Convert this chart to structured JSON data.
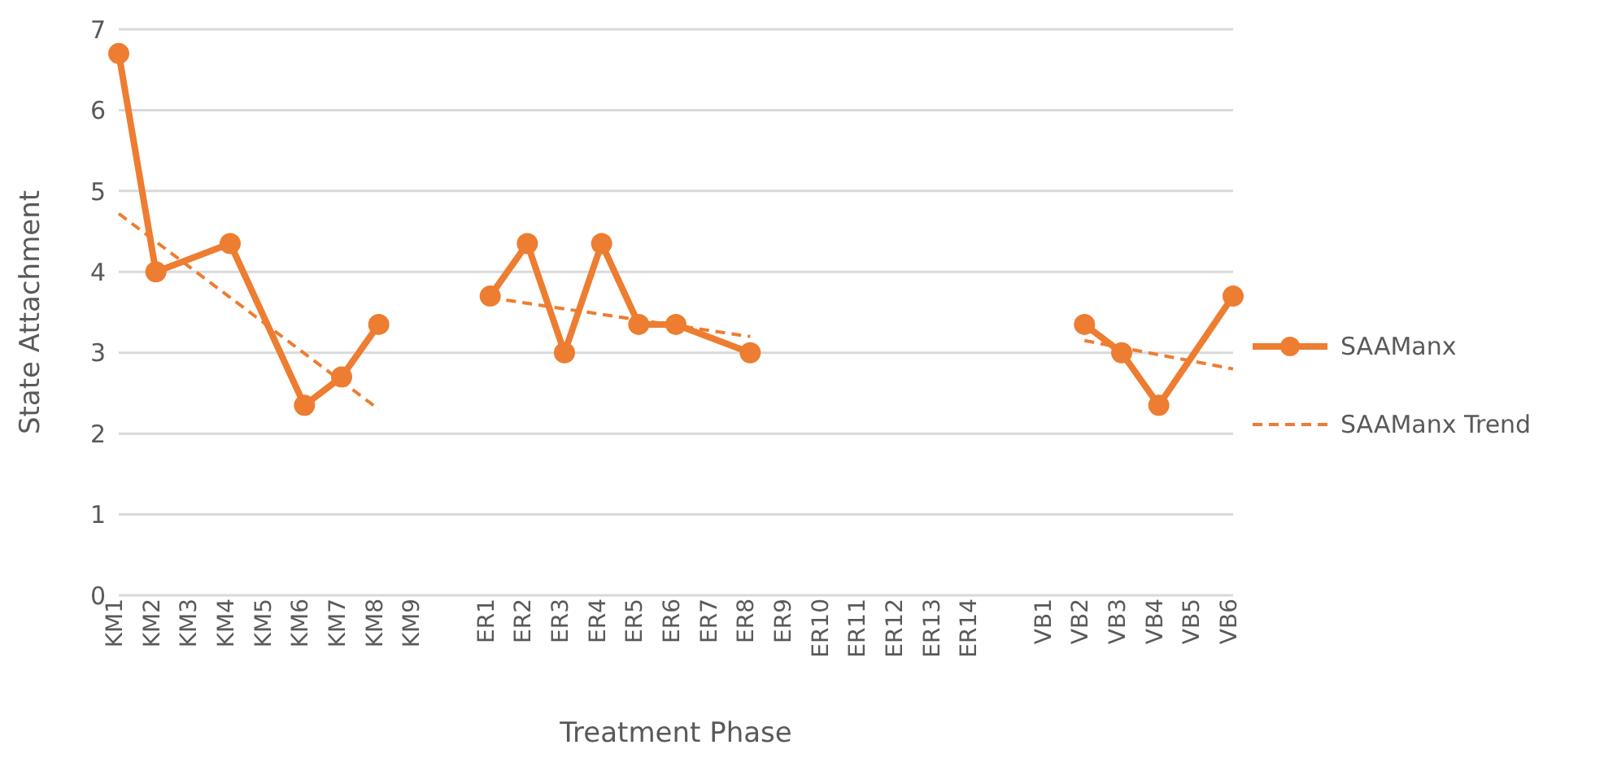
{
  "chart_data": {
    "type": "line",
    "xlabel": "Treatment Phase",
    "ylabel": "State Attachment",
    "categories": [
      "KM1",
      "KM2",
      "KM3",
      "KM4",
      "KM5",
      "KM6",
      "KM7",
      "KM8",
      "KM9",
      null,
      "ER1",
      "ER2",
      "ER3",
      "ER4",
      "ER5",
      "ER6",
      "ER7",
      "ER8",
      "ER9",
      "ER10",
      "ER11",
      "ER12",
      "ER13",
      "ER14",
      null,
      "VB1",
      "VB2",
      "VB3",
      "VB4",
      "VB5",
      "VB6"
    ],
    "series": [
      {
        "name": "SAAManx",
        "color": "#ed7d31",
        "marker": "circle",
        "line_style": "solid",
        "values": [
          6.7,
          4.0,
          null,
          4.35,
          null,
          2.35,
          2.7,
          3.35,
          null,
          null,
          3.7,
          4.35,
          3.0,
          4.35,
          3.35,
          3.35,
          null,
          3.0,
          null,
          null,
          null,
          null,
          null,
          null,
          null,
          null,
          3.35,
          3.0,
          2.35,
          null,
          3.7
        ]
      },
      {
        "name": "SAAManx Trend",
        "color": "#ed7d31",
        "marker": "none",
        "line_style": "dashed",
        "values": [
          4.72,
          null,
          null,
          null,
          null,
          null,
          null,
          2.3,
          null,
          null,
          3.68,
          null,
          null,
          null,
          null,
          null,
          null,
          3.2,
          null,
          null,
          null,
          null,
          null,
          null,
          null,
          null,
          3.15,
          null,
          null,
          null,
          2.8
        ]
      }
    ],
    "ylim": [
      0,
      7
    ],
    "yticks": [
      0,
      1,
      2,
      3,
      4,
      5,
      6,
      7
    ],
    "grid": "y",
    "legend": "right"
  }
}
